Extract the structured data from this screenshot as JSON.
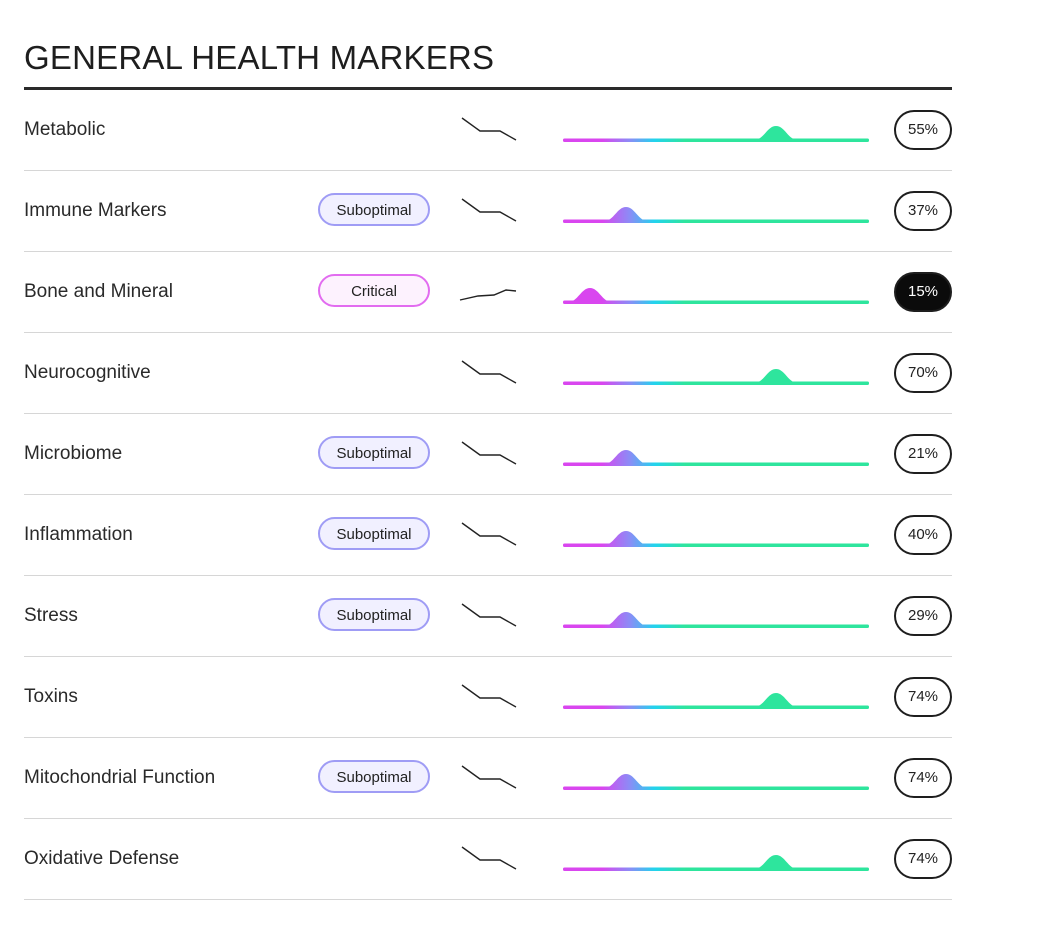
{
  "title": "GENERAL HEALTH MARKERS",
  "colors": {
    "magenta": "#d946ef",
    "purple": "#8b8cf6",
    "cyan": "#22d3ee",
    "green": "#2ee59d",
    "suboptimal_border": "#9f9cf5",
    "critical_border": "#e26cf0"
  },
  "rows": [
    {
      "label": "Metabolic",
      "badge": "",
      "trend": "down",
      "marker": 0.7,
      "score": "55%",
      "highlight": false
    },
    {
      "label": "Immune Markers",
      "badge": "Suboptimal",
      "trend": "down",
      "marker": 0.2,
      "score": "37%",
      "highlight": false
    },
    {
      "label": "Bone and Mineral",
      "badge": "Critical",
      "trend": "up",
      "marker": 0.08,
      "score": "15%",
      "highlight": true
    },
    {
      "label": "Neurocognitive",
      "badge": "",
      "trend": "down",
      "marker": 0.7,
      "score": "70%",
      "highlight": false
    },
    {
      "label": "Microbiome",
      "badge": "Suboptimal",
      "trend": "down",
      "marker": 0.2,
      "score": "21%",
      "highlight": false
    },
    {
      "label": "Inflammation",
      "badge": "Suboptimal",
      "trend": "down",
      "marker": 0.2,
      "score": "40%",
      "highlight": false
    },
    {
      "label": "Stress",
      "badge": "Suboptimal",
      "trend": "down",
      "marker": 0.2,
      "score": "29%",
      "highlight": false
    },
    {
      "label": "Toxins",
      "badge": "",
      "trend": "down",
      "marker": 0.7,
      "score": "74%",
      "highlight": false
    },
    {
      "label": "Mitochondrial Function",
      "badge": "Suboptimal",
      "trend": "down",
      "marker": 0.2,
      "score": "74%",
      "highlight": false
    },
    {
      "label": "Oxidative Defense",
      "badge": "",
      "trend": "down",
      "marker": 0.7,
      "score": "74%",
      "highlight": false
    }
  ]
}
